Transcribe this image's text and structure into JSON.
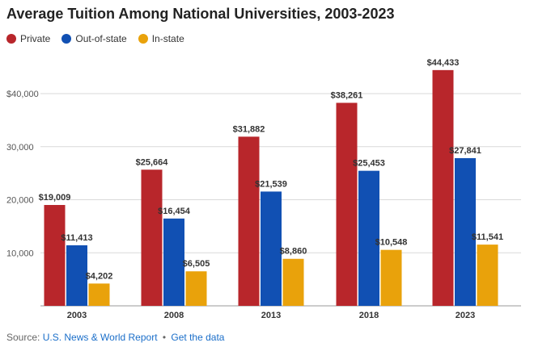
{
  "chart_data": {
    "type": "bar",
    "title": "Average Tuition Among National Universities, 2003-2023",
    "categories": [
      "2003",
      "2008",
      "2013",
      "2018",
      "2023"
    ],
    "series": [
      {
        "name": "Private",
        "color": "#b8262b",
        "values": [
          19009,
          25664,
          31882,
          38261,
          44433
        ]
      },
      {
        "name": "Out-of-state",
        "color": "#1150b3",
        "values": [
          11413,
          16454,
          21539,
          25453,
          27841
        ]
      },
      {
        "name": "In-state",
        "color": "#e9a20b",
        "values": [
          4202,
          6505,
          8860,
          10548,
          11541
        ]
      }
    ],
    "data_labels": [
      [
        "$19,009",
        "$25,664",
        "$31,882",
        "$38,261",
        "$44,433"
      ],
      [
        "$11,413",
        "$16,454",
        "$21,539",
        "$25,453",
        "$27,841"
      ],
      [
        "$4,202",
        "$6,505",
        "$8,860",
        "$10,548",
        "$11,541"
      ]
    ],
    "yticks": [
      {
        "value": 10000,
        "label": "10,000"
      },
      {
        "value": 20000,
        "label": "20,000"
      },
      {
        "value": 30000,
        "label": "30,000"
      },
      {
        "value": 40000,
        "label": "$40,000"
      }
    ],
    "ylim": [
      0,
      44433
    ],
    "grid": true,
    "legend_position": "top-left",
    "xlabel": "",
    "ylabel": ""
  },
  "footer": {
    "source_prefix": "Source:",
    "source_link": "U.S. News & World Report",
    "separator": "•",
    "data_link": "Get the data"
  }
}
